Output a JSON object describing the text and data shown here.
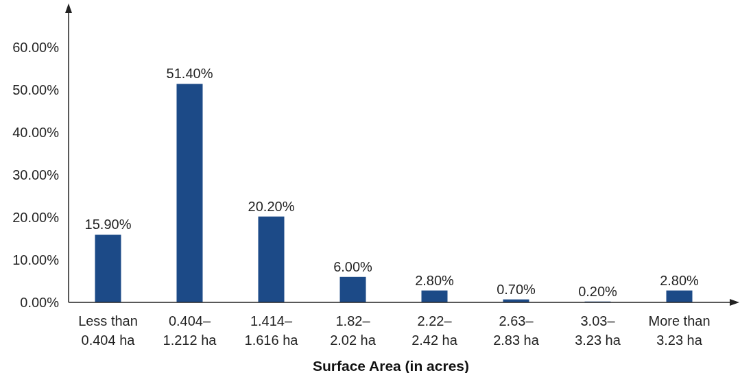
{
  "chart_data": {
    "type": "bar",
    "xlabel": "Surface Area (in acres)",
    "categories": [
      "Less than\n0.404 ha",
      "0.404–\n1.212 ha",
      "1.414–\n1.616 ha",
      "1.82–\n2.02 ha",
      "2.22–\n2.42 ha",
      "2.63–\n2.83 ha",
      "3.03–\n3.23 ha",
      "More than\n3.23 ha"
    ],
    "values": [
      15.9,
      51.4,
      20.2,
      6.0,
      2.8,
      0.7,
      0.2,
      2.8
    ],
    "value_labels": [
      "15.90%",
      "51.40%",
      "20.20%",
      "6.00%",
      "2.80%",
      "0.70%",
      "0.20%",
      "2.80%"
    ],
    "color": "#1c4a87",
    "ylim": [
      0,
      70
    ],
    "yticks": [
      {
        "value": 0,
        "label": "0.00%"
      },
      {
        "value": 10,
        "label": "10.00%"
      },
      {
        "value": 20,
        "label": "20.00%"
      },
      {
        "value": 30,
        "label": "30.00%"
      },
      {
        "value": 40,
        "label": "40.00%"
      },
      {
        "value": 50,
        "label": "50.00%"
      },
      {
        "value": 60,
        "label": "60.00%"
      }
    ],
    "grid": false
  }
}
